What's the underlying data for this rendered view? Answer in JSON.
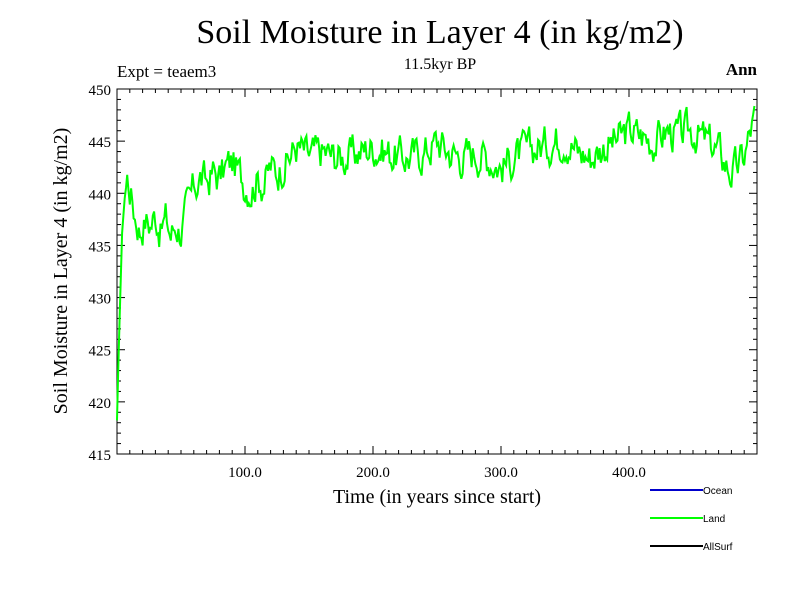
{
  "chart_data": {
    "type": "line",
    "title": "Soil Moisture in Layer 4 (in kg/m2)",
    "subtitle": "11.5kyr BP",
    "experiment_label": "Expt = teaem3",
    "season_label": "Ann",
    "xlabel": "Time (in years since start)",
    "ylabel": "Soil Moisture in Layer 4 (in kg/m2)",
    "xlim": [
      0,
      500
    ],
    "ylim": [
      415,
      450
    ],
    "xticks": [
      100,
      200,
      300,
      400
    ],
    "xtick_labels": [
      "100.0",
      "200.0",
      "300.0",
      "400.0"
    ],
    "yticks": [
      415,
      420,
      425,
      430,
      435,
      440,
      445,
      450
    ],
    "ytick_labels": [
      "415",
      "420",
      "425",
      "430",
      "435",
      "440",
      "445",
      "450"
    ],
    "legend_position": "bottom-right",
    "series": [
      {
        "name": "Ocean",
        "color": "#0000cc",
        "x": [],
        "values": []
      },
      {
        "name": "Land",
        "color": "#00ff00",
        "x": [
          0,
          2,
          4,
          6,
          8,
          10,
          14,
          18,
          22,
          26,
          30,
          34,
          38,
          42,
          46,
          50,
          55,
          60,
          65,
          70,
          75,
          80,
          85,
          90,
          95,
          100,
          105,
          110,
          115,
          120,
          125,
          130,
          135,
          140,
          145,
          150,
          160,
          170,
          180,
          190,
          200,
          210,
          220,
          230,
          240,
          250,
          260,
          270,
          280,
          290,
          300,
          310,
          320,
          330,
          340,
          350,
          360,
          370,
          380,
          390,
          400,
          410,
          420,
          430,
          440,
          450,
          460,
          470,
          475,
          480,
          485,
          490,
          495,
          498
        ],
        "values": [
          418,
          428,
          436,
          440,
          441.5,
          440.5,
          438,
          436.5,
          437.5,
          437,
          438,
          436.5,
          437.5,
          436,
          437,
          436.5,
          438.5,
          440.5,
          441.5,
          441,
          442,
          441.5,
          442.5,
          443,
          442,
          441,
          440.5,
          441.5,
          441,
          442.5,
          442,
          443,
          443.5,
          444.5,
          444,
          443.5,
          444,
          443.5,
          443.5,
          444,
          444.5,
          444,
          443.5,
          443.5,
          444,
          445,
          444,
          443.5,
          444,
          443.5,
          442.5,
          443.5,
          444,
          444.5,
          445,
          445.5,
          444,
          443.5,
          444.5,
          445,
          446,
          445.5,
          445,
          446,
          445.5,
          446,
          445,
          444,
          443,
          442,
          442.5,
          443.5,
          446,
          447
        ]
      },
      {
        "name": "AllSurf",
        "color": "#000000",
        "x": [],
        "values": []
      }
    ]
  }
}
